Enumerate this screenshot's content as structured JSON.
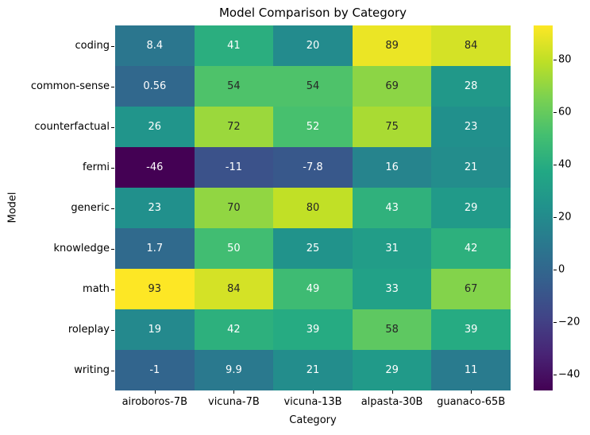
{
  "chart_data": {
    "type": "heatmap",
    "title": "Model Comparison by Category",
    "xlabel": "Category",
    "ylabel": "Model",
    "colormap": "viridis",
    "rows": [
      "coding",
      "common-sense",
      "counterfactual",
      "fermi",
      "generic",
      "knowledge",
      "math",
      "roleplay",
      "writing"
    ],
    "columns": [
      "airoboros-7B",
      "vicuna-7B",
      "vicuna-13B",
      "alpasta-30B",
      "guanaco-65B"
    ],
    "values": [
      [
        8.4,
        41,
        20,
        89,
        84
      ],
      [
        0.56,
        54,
        54,
        69,
        28
      ],
      [
        26,
        72,
        52,
        75,
        23
      ],
      [
        -46,
        -11,
        -7.8,
        16,
        21
      ],
      [
        23,
        70,
        80,
        43,
        29
      ],
      [
        1.7,
        50,
        25,
        31,
        42
      ],
      [
        93,
        84,
        49,
        33,
        67
      ],
      [
        19,
        42,
        39,
        58,
        39
      ],
      [
        -1,
        9.9,
        21,
        29,
        11
      ]
    ],
    "labels": [
      [
        "8.4",
        "41",
        "20",
        "89",
        "84"
      ],
      [
        "0.56",
        "54",
        "54",
        "69",
        "28"
      ],
      [
        "26",
        "72",
        "52",
        "75",
        "23"
      ],
      [
        "-46",
        "-11",
        "-7.8",
        "16",
        "21"
      ],
      [
        "23",
        "70",
        "80",
        "43",
        "29"
      ],
      [
        "1.7",
        "50",
        "25",
        "31",
        "42"
      ],
      [
        "93",
        "84",
        "49",
        "33",
        "67"
      ],
      [
        "19",
        "42",
        "39",
        "58",
        "39"
      ],
      [
        "-1",
        "9.9",
        "21",
        "29",
        "11"
      ]
    ],
    "vmin": -46,
    "vmax": 93,
    "legend_position": "right-colorbar",
    "grid": false,
    "colorbar_ticks": [
      {
        "value": 80,
        "label": "80"
      },
      {
        "value": 60,
        "label": "60"
      },
      {
        "value": 40,
        "label": "40"
      },
      {
        "value": 20,
        "label": "20"
      },
      {
        "value": 0,
        "label": "0"
      },
      {
        "value": -20,
        "label": "−20"
      },
      {
        "value": -40,
        "label": "−40"
      }
    ],
    "annotation_colors": {
      "light_text": "#ffffff",
      "dark_text": "#262626"
    }
  }
}
